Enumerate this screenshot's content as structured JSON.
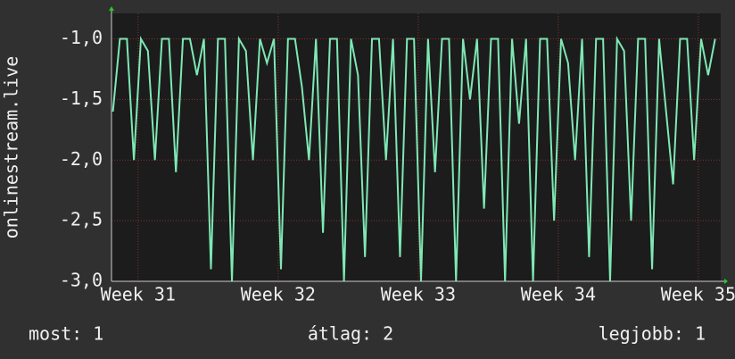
{
  "chart_data": {
    "type": "line",
    "y_label": "onlinestream.live",
    "x": [
      30.82,
      30.87,
      30.92,
      30.97,
      31.02,
      31.07,
      31.12,
      31.17,
      31.22,
      31.27,
      31.32,
      31.37,
      31.42,
      31.47,
      31.52,
      31.57,
      31.62,
      31.67,
      31.72,
      31.77,
      31.82,
      31.87,
      31.92,
      31.97,
      32.02,
      32.07,
      32.12,
      32.17,
      32.22,
      32.27,
      32.32,
      32.37,
      32.42,
      32.47,
      32.52,
      32.57,
      32.62,
      32.67,
      32.72,
      32.77,
      32.82,
      32.87,
      32.92,
      32.97,
      33.02,
      33.07,
      33.12,
      33.17,
      33.22,
      33.27,
      33.32,
      33.37,
      33.42,
      33.47,
      33.52,
      33.57,
      33.62,
      33.67,
      33.72,
      33.77,
      33.82,
      33.87,
      33.92,
      33.97,
      34.02,
      34.07,
      34.12,
      34.17,
      34.22,
      34.27,
      34.32,
      34.37,
      34.42,
      34.47,
      34.52,
      34.57,
      34.62,
      34.67,
      34.72,
      34.77,
      34.82,
      34.87,
      34.92,
      34.97,
      35.02,
      35.07,
      35.12
    ],
    "series": [
      {
        "color": "#7ee8b4",
        "values": [
          -1.6,
          -1,
          -1,
          -2,
          -1,
          -1.1,
          -2,
          -1,
          -1,
          -2.1,
          -1,
          -1,
          -1.3,
          -1,
          -2.9,
          -1,
          -1,
          -3,
          -1,
          -1.1,
          -2,
          -1,
          -1.2,
          -1,
          -2.9,
          -1,
          -1,
          -1.4,
          -2,
          -1,
          -2.6,
          -1,
          -1,
          -3,
          -1,
          -1.3,
          -2.8,
          -1,
          -1,
          -2,
          -1,
          -2.8,
          -1,
          -1,
          -3,
          -1,
          -2.1,
          -1,
          -1,
          -3,
          -1,
          -1.5,
          -1,
          -2.4,
          -1,
          -1,
          -3,
          -1,
          -1.7,
          -1,
          -3,
          -1,
          -1,
          -2.5,
          -1,
          -1.2,
          -2,
          -1,
          -2.8,
          -1,
          -1,
          -3,
          -1,
          -1.1,
          -2.5,
          -1,
          -1,
          -2.9,
          -1,
          -1.6,
          -2.2,
          -1,
          -1,
          -2,
          -1,
          -1.3,
          -1
        ]
      }
    ],
    "xlim": [
      30.81,
      35.16
    ],
    "xticks": [
      {
        "value": 31,
        "label": "Week 31"
      },
      {
        "value": 32,
        "label": "Week 32"
      },
      {
        "value": 33,
        "label": "Week 33"
      },
      {
        "value": 34,
        "label": "Week 34"
      },
      {
        "value": 35,
        "label": "Week 35"
      }
    ],
    "ylim": [
      -3,
      -0.79
    ],
    "yticks": [
      {
        "value": -3,
        "label": "-3,0"
      },
      {
        "value": -2.5,
        "label": "-2,5"
      },
      {
        "value": -2,
        "label": "-2,0"
      },
      {
        "value": -1.5,
        "label": "-1,5"
      },
      {
        "value": -1,
        "label": "-1,0"
      }
    ],
    "grid": true,
    "stats": [
      "most: 1",
      "átlag: 2",
      "legjobb: 1"
    ]
  }
}
